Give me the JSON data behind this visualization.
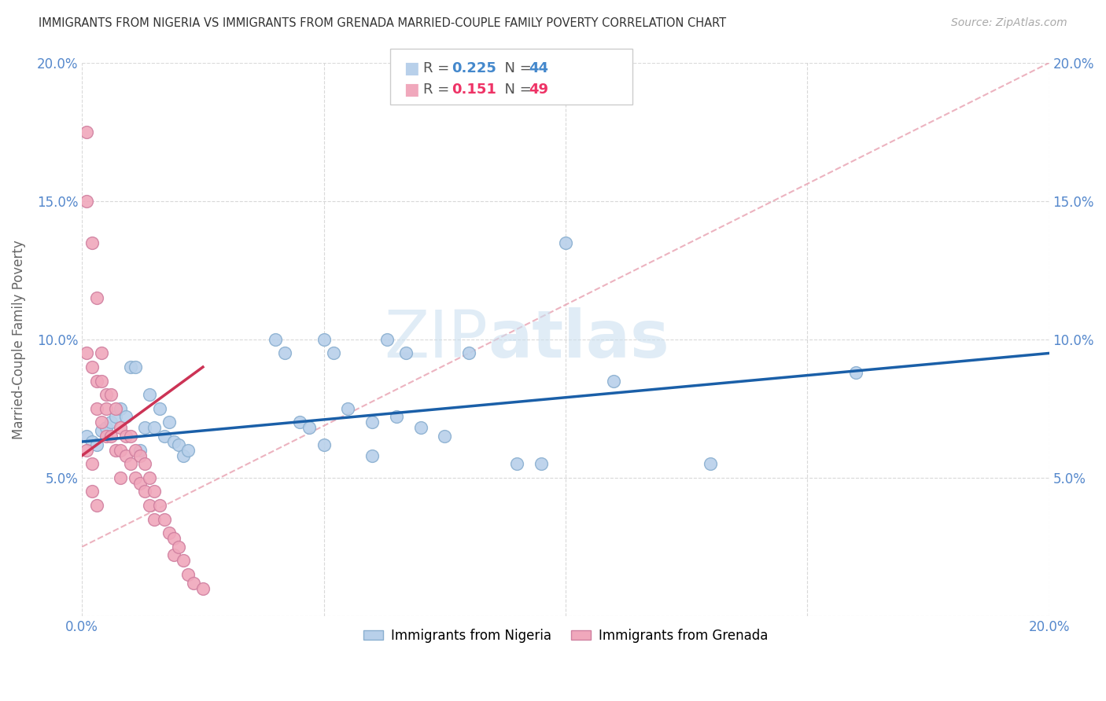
{
  "title": "IMMIGRANTS FROM NIGERIA VS IMMIGRANTS FROM GRENADA MARRIED-COUPLE FAMILY POVERTY CORRELATION CHART",
  "source": "Source: ZipAtlas.com",
  "ylabel": "Married-Couple Family Poverty",
  "xlim": [
    0.0,
    0.2
  ],
  "ylim": [
    0.0,
    0.2
  ],
  "xtick_vals": [
    0.0,
    0.05,
    0.1,
    0.15,
    0.2
  ],
  "ytick_vals": [
    0.0,
    0.05,
    0.1,
    0.15,
    0.2
  ],
  "xticklabels": [
    "0.0%",
    "",
    "",
    "",
    "20.0%"
  ],
  "yticklabels": [
    "",
    "5.0%",
    "10.0%",
    "15.0%",
    "20.0%"
  ],
  "nigeria_R": 0.225,
  "nigeria_N": 44,
  "grenada_R": 0.151,
  "grenada_N": 49,
  "nigeria_color": "#b8d0ea",
  "grenada_color": "#f0a8bc",
  "nigeria_line_color": "#1a5fa8",
  "grenada_line_color": "#cc3355",
  "diagonal_color": "#e8a0b0",
  "watermark_color": "#cce0f0",
  "nigeria_points_x": [
    0.001,
    0.002,
    0.003,
    0.004,
    0.005,
    0.006,
    0.007,
    0.008,
    0.009,
    0.01,
    0.011,
    0.012,
    0.013,
    0.014,
    0.015,
    0.016,
    0.017,
    0.018,
    0.019,
    0.02,
    0.021,
    0.022,
    0.04,
    0.042,
    0.045,
    0.047,
    0.05,
    0.052,
    0.055,
    0.06,
    0.065,
    0.07,
    0.075,
    0.08,
    0.09,
    0.095,
    0.1,
    0.11,
    0.13,
    0.16,
    0.05,
    0.06,
    0.063,
    0.067
  ],
  "nigeria_points_y": [
    0.065,
    0.063,
    0.062,
    0.067,
    0.068,
    0.07,
    0.072,
    0.075,
    0.072,
    0.09,
    0.09,
    0.06,
    0.068,
    0.08,
    0.068,
    0.075,
    0.065,
    0.07,
    0.063,
    0.062,
    0.058,
    0.06,
    0.1,
    0.095,
    0.07,
    0.068,
    0.1,
    0.095,
    0.075,
    0.07,
    0.072,
    0.068,
    0.065,
    0.095,
    0.055,
    0.055,
    0.135,
    0.085,
    0.055,
    0.088,
    0.062,
    0.058,
    0.1,
    0.095
  ],
  "grenada_points_x": [
    0.001,
    0.001,
    0.001,
    0.002,
    0.002,
    0.003,
    0.003,
    0.003,
    0.004,
    0.004,
    0.004,
    0.005,
    0.005,
    0.005,
    0.006,
    0.006,
    0.007,
    0.007,
    0.008,
    0.008,
    0.008,
    0.009,
    0.009,
    0.01,
    0.01,
    0.011,
    0.011,
    0.012,
    0.012,
    0.013,
    0.013,
    0.014,
    0.014,
    0.015,
    0.015,
    0.016,
    0.017,
    0.018,
    0.019,
    0.019,
    0.02,
    0.021,
    0.022,
    0.023,
    0.025,
    0.001,
    0.002,
    0.002,
    0.003
  ],
  "grenada_points_y": [
    0.175,
    0.15,
    0.095,
    0.135,
    0.09,
    0.115,
    0.085,
    0.075,
    0.095,
    0.085,
    0.07,
    0.08,
    0.075,
    0.065,
    0.08,
    0.065,
    0.075,
    0.06,
    0.068,
    0.06,
    0.05,
    0.065,
    0.058,
    0.065,
    0.055,
    0.06,
    0.05,
    0.058,
    0.048,
    0.055,
    0.045,
    0.05,
    0.04,
    0.045,
    0.035,
    0.04,
    0.035,
    0.03,
    0.028,
    0.022,
    0.025,
    0.02,
    0.015,
    0.012,
    0.01,
    0.06,
    0.055,
    0.045,
    0.04
  ]
}
